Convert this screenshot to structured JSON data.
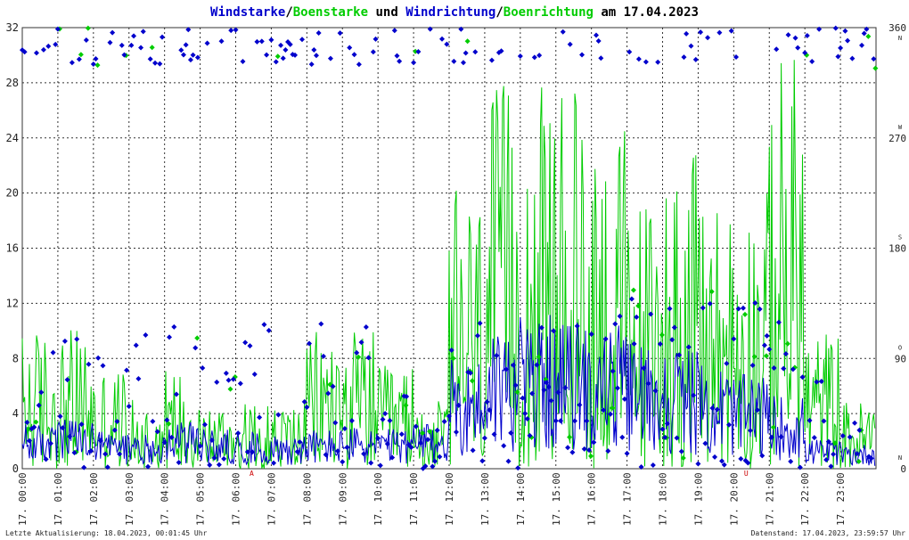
{
  "chart_data": {
    "type": "line",
    "title_parts": [
      {
        "text": "Windstarke",
        "color": "#0000cc"
      },
      {
        "text": "/",
        "color": "#000000"
      },
      {
        "text": "Boenstarke",
        "color": "#00cc00"
      },
      {
        "text": " und ",
        "color": "#000000"
      },
      {
        "text": "Windrichtung",
        "color": "#0000cc"
      },
      {
        "text": "/",
        "color": "#000000"
      },
      {
        "text": "Boenrichtung",
        "color": "#00cc00"
      },
      {
        "text": " am 17.04.2023",
        "color": "#000000"
      }
    ],
    "ylim": [
      0,
      32
    ],
    "yticks": [
      "0",
      "4",
      "8",
      "12",
      "16",
      "20",
      "24",
      "28",
      "32"
    ],
    "y2ticks": [
      "0",
      "90",
      "180",
      "270",
      "360"
    ],
    "y2dirs": [
      "N",
      "O",
      "S",
      "W",
      "N"
    ],
    "xticks": [
      "17. 00:00",
      "17. 01:00",
      "17. 02:00",
      "17. 03:00",
      "17. 04:00",
      "17. 05:00",
      "17. 06:00",
      "17. 07:00",
      "17. 08:00",
      "17. 09:00",
      "17. 10:00",
      "17. 11:00",
      "17. 12:00",
      "17. 13:00",
      "17. 14:00",
      "17. 15:00",
      "17. 16:00",
      "17. 17:00",
      "17. 18:00",
      "17. 19:00",
      "17. 20:00",
      "17. 21:00",
      "17. 22:00",
      "17. 23:00"
    ],
    "grid": true,
    "colors": {
      "wind": "#0000cc",
      "gust": "#00cc00",
      "grid": "#333333",
      "marker": "#cc0000"
    },
    "series": [
      {
        "name": "Windstarke",
        "color": "#0000cc",
        "hourly_avg": [
          1.8,
          2.0,
          1.5,
          1.4,
          1.9,
          1.6,
          1.5,
          1.4,
          1.6,
          1.7,
          1.6,
          1.8,
          4.5,
          6.0,
          6.2,
          6.0,
          5.8,
          5.2,
          5.0,
          4.2,
          3.8,
          3.0,
          1.2,
          1.0
        ]
      },
      {
        "name": "Boenstarke",
        "color": "#00cc00",
        "hourly_max": [
          10.2,
          10.2,
          7.5,
          5.0,
          7.5,
          4.8,
          4.8,
          5.0,
          10.2,
          10.2,
          7.5,
          5.0,
          20.3,
          27.8,
          27.8,
          27.8,
          25.5,
          20.3,
          22.8,
          20.3,
          20.3,
          30.5,
          10.2,
          5.0
        ]
      },
      {
        "name": "Windrichtung",
        "color": "#0000cc",
        "unit": "deg",
        "axis": "right"
      },
      {
        "name": "Boenrichtung",
        "color": "#00cc00",
        "unit": "deg",
        "axis": "right"
      }
    ],
    "event_markers": [
      "A",
      "U"
    ]
  },
  "footer": {
    "left": "Letzte Aktualisierung: 18.04.2023, 00:01:45 Uhr",
    "right": "Datenstand: 17.04.2023, 23:59:57 Uhr"
  }
}
